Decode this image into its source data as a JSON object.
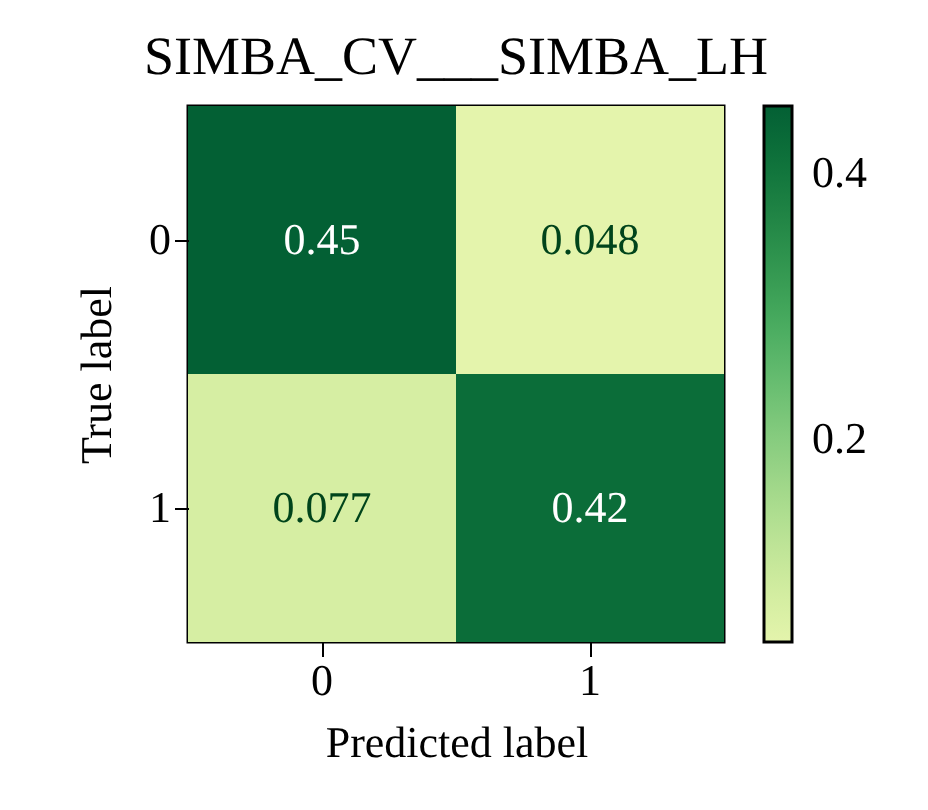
{
  "chart_data": {
    "type": "heatmap",
    "title": "SIMBA_CV___SIMBA_LH",
    "xlabel": "Predicted label",
    "ylabel": "True label",
    "categories": [
      "0",
      "1"
    ],
    "y_categories": [
      "0",
      "1"
    ],
    "cells": [
      [
        0.45,
        0.048
      ],
      [
        0.077,
        0.42
      ]
    ],
    "clim": [
      0.048,
      0.45
    ],
    "cticks": [
      0.2,
      0.4
    ],
    "data_labels": true
  }
}
